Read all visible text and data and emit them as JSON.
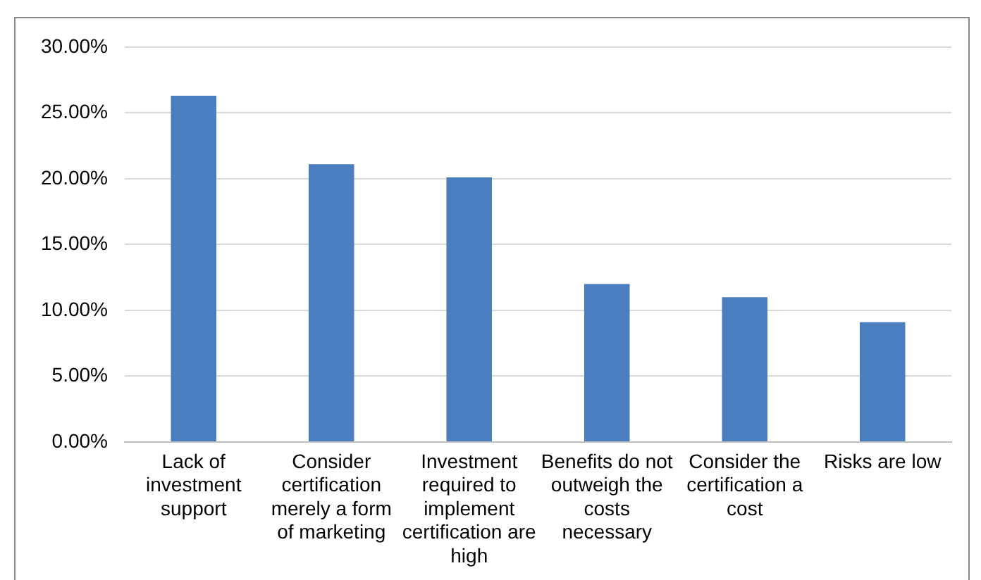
{
  "chart_data": {
    "type": "bar",
    "categories": [
      "Lack of investment support",
      "Consider certification merely a form of marketing",
      "Investment required to implement certification are high",
      "Benefits do not outweigh the costs necessary",
      "Consider the certification a cost",
      "Risks are low"
    ],
    "values": [
      26.3,
      21.1,
      20.1,
      12.0,
      11.0,
      9.1
    ],
    "color": "#4a7ebf",
    "ylim": [
      0,
      30
    ],
    "yticks": [
      {
        "value": 0,
        "label": "0.00%"
      },
      {
        "value": 5,
        "label": "5.00%"
      },
      {
        "value": 10,
        "label": "10.00%"
      },
      {
        "value": 15,
        "label": "15.00%"
      },
      {
        "value": 20,
        "label": "20.00%"
      },
      {
        "value": 25,
        "label": "25.00%"
      },
      {
        "value": 30,
        "label": "30.00%"
      }
    ],
    "grid": "y",
    "legend": false
  }
}
